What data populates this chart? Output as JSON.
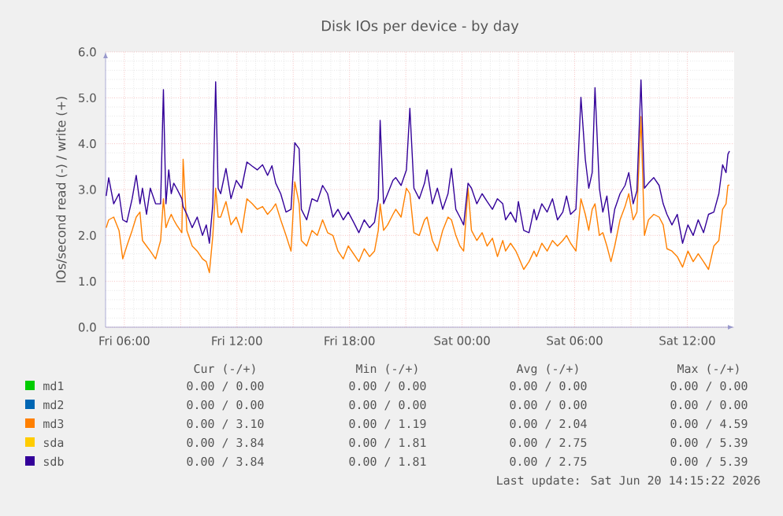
{
  "chart_data": {
    "type": "line",
    "title": "Disk IOs per device - by day",
    "ylabel": "IOs/second read (-) / write (+)",
    "xlim": [
      "2026-06-19T05:00",
      "2026-06-20T14:30"
    ],
    "ylim": [
      0,
      6
    ],
    "xticks": [
      {
        "value": "2026-06-19T06:00",
        "label": "Fri 06:00"
      },
      {
        "value": "2026-06-19T09:00",
        "label": null
      },
      {
        "value": "2026-06-19T12:00",
        "label": "Fri 12:00"
      },
      {
        "value": "2026-06-19T15:00",
        "label": null
      },
      {
        "value": "2026-06-19T18:00",
        "label": "Fri 18:00"
      },
      {
        "value": "2026-06-19T21:00",
        "label": null
      },
      {
        "value": "2026-06-20T00:00",
        "label": "Sat 00:00"
      },
      {
        "value": "2026-06-20T03:00",
        "label": null
      },
      {
        "value": "2026-06-20T06:00",
        "label": "Sat 06:00"
      },
      {
        "value": "2026-06-20T09:00",
        "label": null
      },
      {
        "value": "2026-06-20T12:00",
        "label": "Sat 12:00"
      }
    ],
    "yticks": [
      {
        "value": 0,
        "label": "0.0"
      },
      {
        "value": 1,
        "label": "1.0"
      },
      {
        "value": 2,
        "label": "2.0"
      },
      {
        "value": 3,
        "label": "3.0"
      },
      {
        "value": 4,
        "label": "4.0"
      },
      {
        "value": 5,
        "label": "5.0"
      },
      {
        "value": 6,
        "label": "6.0"
      }
    ],
    "grid": true,
    "legend": "bottom",
    "x": [
      "2026-06-19T05:02",
      "2026-06-19T05:10",
      "2026-06-19T05:26",
      "2026-06-19T05:43",
      "2026-06-19T05:55",
      "2026-06-19T06:08",
      "2026-06-19T06:25",
      "2026-06-19T06:38",
      "2026-06-19T06:50",
      "2026-06-19T06:58",
      "2026-06-19T07:11",
      "2026-06-19T07:23",
      "2026-06-19T07:40",
      "2026-06-19T07:56",
      "2026-06-19T08:05",
      "2026-06-19T08:13",
      "2026-06-19T08:22",
      "2026-06-19T08:30",
      "2026-06-19T08:38",
      "2026-06-19T08:47",
      "2026-06-19T09:04",
      "2026-06-19T09:08",
      "2026-06-19T09:20",
      "2026-06-19T09:37",
      "2026-06-19T09:53",
      "2026-06-19T10:10",
      "2026-06-19T10:22",
      "2026-06-19T10:32",
      "2026-06-19T10:43",
      "2026-06-19T10:52",
      "2026-06-19T11:00",
      "2026-06-19T11:08",
      "2026-06-19T11:25",
      "2026-06-19T11:41",
      "2026-06-19T11:58",
      "2026-06-19T12:15",
      "2026-06-19T12:32",
      "2026-06-19T12:49",
      "2026-06-19T13:05",
      "2026-06-19T13:22",
      "2026-06-19T13:38",
      "2026-06-19T13:52",
      "2026-06-19T14:04",
      "2026-06-19T14:20",
      "2026-06-19T14:37",
      "2026-06-19T14:53",
      "2026-06-19T15:05",
      "2026-06-19T15:19",
      "2026-06-19T15:26",
      "2026-06-19T15:43",
      "2026-06-19T16:00",
      "2026-06-19T16:17",
      "2026-06-19T16:34",
      "2026-06-19T16:50",
      "2026-06-19T17:07",
      "2026-06-19T17:23",
      "2026-06-19T17:40",
      "2026-06-19T17:56",
      "2026-06-19T18:13",
      "2026-06-19T18:30",
      "2026-06-19T18:47",
      "2026-06-19T19:04",
      "2026-06-19T19:20",
      "2026-06-19T19:32",
      "2026-06-19T19:38",
      "2026-06-19T19:49",
      "2026-06-19T20:02",
      "2026-06-19T20:19",
      "2026-06-19T20:28",
      "2026-06-19T20:45",
      "2026-06-19T21:02",
      "2026-06-19T21:13",
      "2026-06-19T21:26",
      "2026-06-19T21:43",
      "2026-06-19T22:00",
      "2026-06-19T22:08",
      "2026-06-19T22:25",
      "2026-06-19T22:41",
      "2026-06-19T22:58",
      "2026-06-19T23:15",
      "2026-06-19T23:26",
      "2026-06-19T23:40",
      "2026-06-19T23:53",
      "2026-06-20T00:05",
      "2026-06-20T00:19",
      "2026-06-20T00:30",
      "2026-06-20T00:47",
      "2026-06-20T01:04",
      "2026-06-20T01:20",
      "2026-06-20T01:37",
      "2026-06-20T01:53",
      "2026-06-20T02:10",
      "2026-06-20T02:19",
      "2026-06-20T02:35",
      "2026-06-20T02:52",
      "2026-06-20T03:00",
      "2026-06-20T03:17",
      "2026-06-20T03:34",
      "2026-06-20T03:50",
      "2026-06-20T03:58",
      "2026-06-20T04:15",
      "2026-06-20T04:32",
      "2026-06-20T04:49",
      "2026-06-20T05:05",
      "2026-06-20T05:22",
      "2026-06-20T05:34",
      "2026-06-20T05:47",
      "2026-06-20T06:04",
      "2026-06-20T06:20",
      "2026-06-20T06:34",
      "2026-06-20T06:45",
      "2026-06-20T06:56",
      "2026-06-20T07:05",
      "2026-06-20T07:19",
      "2026-06-20T07:30",
      "2026-06-20T07:43",
      "2026-06-20T07:56",
      "2026-06-20T08:08",
      "2026-06-20T08:25",
      "2026-06-20T08:41",
      "2026-06-20T08:53",
      "2026-06-20T09:07",
      "2026-06-20T09:19",
      "2026-06-20T09:32",
      "2026-06-20T09:43",
      "2026-06-20T09:56",
      "2026-06-20T10:13",
      "2026-06-20T10:30",
      "2026-06-20T10:43",
      "2026-06-20T10:55",
      "2026-06-20T11:11",
      "2026-06-20T11:28",
      "2026-06-20T11:45",
      "2026-06-20T12:02",
      "2026-06-20T12:19",
      "2026-06-20T12:35",
      "2026-06-20T12:52",
      "2026-06-20T13:08",
      "2026-06-20T13:25",
      "2026-06-20T13:41",
      "2026-06-20T13:53",
      "2026-06-20T14:04",
      "2026-06-20T14:10",
      "2026-06-20T14:15"
    ],
    "series": [
      {
        "name": "md1",
        "color": "#00cc00",
        "values": [
          null,
          null,
          null,
          null,
          null,
          null,
          null,
          null,
          null,
          null,
          null,
          null,
          null,
          null,
          null,
          null,
          null,
          null,
          null,
          null,
          null,
          null,
          null,
          null,
          null,
          null,
          null,
          null,
          null,
          null,
          null,
          null,
          null,
          null,
          null,
          null,
          null,
          null,
          null,
          null,
          null,
          null,
          null,
          null,
          null,
          null,
          null,
          null,
          null,
          null,
          null,
          null,
          null,
          null,
          null,
          null,
          null,
          null,
          null,
          null,
          null,
          null,
          null,
          null,
          null,
          null,
          null,
          null,
          null,
          null,
          null,
          null,
          null,
          null,
          null,
          null,
          null,
          null,
          null,
          null,
          null,
          null,
          null,
          null,
          null,
          null,
          null,
          null,
          null,
          null,
          null,
          null,
          null,
          null,
          null,
          null,
          null,
          null,
          null,
          null,
          null,
          null,
          null,
          null,
          null,
          null,
          null,
          null,
          null,
          null,
          null,
          null,
          null,
          null,
          null,
          null,
          null,
          null,
          null,
          null,
          null,
          null,
          null,
          null,
          null,
          null,
          null,
          null,
          null,
          null,
          null,
          null,
          null,
          null,
          null,
          null,
          null,
          null,
          null,
          null,
          null,
          null,
          null,
          null
        ]
      },
      {
        "name": "md2",
        "color": "#0066b3",
        "values": [
          null,
          null,
          null,
          null,
          null,
          null,
          null,
          null,
          null,
          null,
          null,
          null,
          null,
          null,
          null,
          null,
          null,
          null,
          null,
          null,
          null,
          null,
          null,
          null,
          null,
          null,
          null,
          null,
          null,
          null,
          null,
          null,
          null,
          null,
          null,
          null,
          null,
          null,
          null,
          null,
          null,
          null,
          null,
          null,
          null,
          null,
          null,
          null,
          null,
          null,
          null,
          null,
          null,
          null,
          null,
          null,
          null,
          null,
          null,
          null,
          null,
          null,
          null,
          null,
          null,
          null,
          null,
          null,
          null,
          null,
          null,
          null,
          null,
          null,
          null,
          null,
          null,
          null,
          null,
          null,
          null,
          null,
          null,
          null,
          null,
          null,
          null,
          null,
          null,
          null,
          null,
          null,
          null,
          null,
          null,
          null,
          null,
          null,
          null,
          null,
          null,
          null,
          null,
          null,
          null,
          null,
          null,
          null,
          null,
          null,
          null,
          null,
          null,
          null,
          null,
          null,
          null,
          null,
          null,
          null,
          null,
          null,
          null,
          null,
          null,
          null,
          null,
          null,
          null,
          null,
          null,
          null,
          null,
          null,
          null,
          null,
          null,
          null,
          null,
          null,
          null,
          null,
          null,
          null
        ]
      },
      {
        "name": "md3",
        "color": "#ff8000",
        "values": [
          2.17,
          2.34,
          2.4,
          2.11,
          1.49,
          1.77,
          2.11,
          2.4,
          2.51,
          1.89,
          1.77,
          1.66,
          1.49,
          1.89,
          2.8,
          2.17,
          2.34,
          2.46,
          2.34,
          2.23,
          2.06,
          3.66,
          2.11,
          1.77,
          1.66,
          1.49,
          1.43,
          1.19,
          2.0,
          3.03,
          2.4,
          2.4,
          2.74,
          2.23,
          2.4,
          2.06,
          2.8,
          2.69,
          2.57,
          2.63,
          2.46,
          2.57,
          2.69,
          2.34,
          2.0,
          1.66,
          3.17,
          2.69,
          1.89,
          1.77,
          2.11,
          2.0,
          2.34,
          2.06,
          2.0,
          1.66,
          1.49,
          1.77,
          1.6,
          1.43,
          1.71,
          1.54,
          1.66,
          2.11,
          2.69,
          2.11,
          2.23,
          2.46,
          2.57,
          2.4,
          3.03,
          2.91,
          2.06,
          2.0,
          2.34,
          2.4,
          1.89,
          1.66,
          2.11,
          2.4,
          2.34,
          2.0,
          1.77,
          1.66,
          3.03,
          2.11,
          1.89,
          2.06,
          1.77,
          1.94,
          1.54,
          1.89,
          1.66,
          1.83,
          1.66,
          1.54,
          1.26,
          1.43,
          1.66,
          1.54,
          1.83,
          1.66,
          1.89,
          1.77,
          1.89,
          2.0,
          1.83,
          1.66,
          2.8,
          2.46,
          2.11,
          2.57,
          2.69,
          2.0,
          2.06,
          1.77,
          1.43,
          1.77,
          2.34,
          2.63,
          2.91,
          2.34,
          2.51,
          4.59,
          2.0,
          2.34,
          2.46,
          2.4,
          2.23,
          1.71,
          1.66,
          1.54,
          1.31,
          1.66,
          1.43,
          1.6,
          1.43,
          1.26,
          1.77,
          1.89,
          2.57,
          2.69,
          3.09,
          3.1
        ]
      },
      {
        "name": "sda",
        "color": "#ffcc00",
        "values": [
          null,
          null,
          null,
          null,
          null,
          null,
          null,
          null,
          null,
          null,
          null,
          null,
          null,
          null,
          null,
          null,
          null,
          null,
          null,
          null,
          null,
          null,
          null,
          null,
          null,
          null,
          null,
          null,
          null,
          null,
          null,
          null,
          null,
          null,
          null,
          null,
          null,
          null,
          null,
          null,
          null,
          null,
          null,
          null,
          null,
          null,
          null,
          null,
          null,
          null,
          null,
          null,
          null,
          null,
          null,
          null,
          null,
          null,
          null,
          null,
          null,
          null,
          null,
          null,
          null,
          null,
          null,
          null,
          null,
          null,
          null,
          null,
          null,
          null,
          null,
          null,
          null,
          null,
          null,
          null,
          null,
          null,
          null,
          null,
          null,
          null,
          null,
          null,
          null,
          null,
          null,
          null,
          null,
          null,
          null,
          null,
          null,
          null,
          null,
          null,
          null,
          null,
          null,
          null,
          null,
          null,
          null,
          null,
          null,
          null,
          null,
          null,
          null,
          null,
          null,
          null,
          null,
          null,
          null,
          null,
          null,
          null,
          null,
          null,
          null,
          null,
          null,
          null,
          null,
          null,
          null,
          null,
          null,
          null,
          null,
          null,
          null,
          null,
          null,
          null,
          null,
          null,
          null,
          null
        ]
      },
      {
        "name": "sdb",
        "color": "#330099",
        "values": [
          2.86,
          3.26,
          2.69,
          2.91,
          2.34,
          2.29,
          2.8,
          3.31,
          2.69,
          3.03,
          2.46,
          3.03,
          2.69,
          2.69,
          5.18,
          2.69,
          3.43,
          2.91,
          3.14,
          3.03,
          2.8,
          2.63,
          2.46,
          2.17,
          2.4,
          2.0,
          2.23,
          1.83,
          2.69,
          5.35,
          3.03,
          2.91,
          3.46,
          2.8,
          3.2,
          3.03,
          3.6,
          3.51,
          3.43,
          3.54,
          3.31,
          3.52,
          3.14,
          2.91,
          2.51,
          2.57,
          4.02,
          3.89,
          2.57,
          2.34,
          2.8,
          2.74,
          3.09,
          2.91,
          2.4,
          2.57,
          2.34,
          2.51,
          2.29,
          2.06,
          2.34,
          2.17,
          2.29,
          2.8,
          4.51,
          2.69,
          2.91,
          3.2,
          3.26,
          3.09,
          3.43,
          4.77,
          3.03,
          2.8,
          3.14,
          3.43,
          2.69,
          3.03,
          2.57,
          2.91,
          3.46,
          2.57,
          2.4,
          2.23,
          3.14,
          3.03,
          2.69,
          2.91,
          2.74,
          2.57,
          2.8,
          2.69,
          2.34,
          2.51,
          2.29,
          2.74,
          2.11,
          2.06,
          2.57,
          2.34,
          2.69,
          2.51,
          2.8,
          2.34,
          2.51,
          2.86,
          2.46,
          2.57,
          5.01,
          3.66,
          3.03,
          3.37,
          5.22,
          3.03,
          2.51,
          2.86,
          2.06,
          2.57,
          2.91,
          3.09,
          3.37,
          2.69,
          2.97,
          5.39,
          3.03,
          3.14,
          3.26,
          3.09,
          2.69,
          2.46,
          2.23,
          2.46,
          1.83,
          2.23,
          2.0,
          2.34,
          2.06,
          2.46,
          2.51,
          2.91,
          3.54,
          3.37,
          3.77,
          3.84
        ]
      }
    ],
    "annotations": [
      "Cur (-/+)",
      "Min (-/+)",
      "Avg (-/+)",
      "Max (-/+)",
      "0.00 / 0.00",
      "0.00 / 0.00",
      "0.00 / 0.00",
      "0.00 / 0.00",
      "0.00 / 0.00",
      "0.00 / 0.00",
      "0.00 / 0.00",
      "0.00 / 0.00",
      "0.00 / 3.10",
      "0.00 / 1.19",
      "0.00 / 2.04",
      "0.00 / 4.59",
      "0.00 / 3.84",
      "0.00 / 1.81",
      "0.00 / 2.75",
      "0.00 / 5.39",
      "0.00 / 3.84",
      "0.00 / 1.81",
      "0.00 / 2.75",
      "0.00 / 5.39",
      "Last update: Sat Jun 20 14:15:22 2026"
    ]
  }
}
